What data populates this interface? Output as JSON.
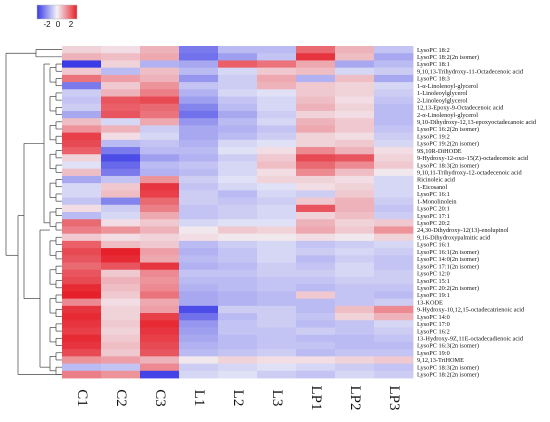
{
  "chart_data": {
    "type": "heatmap",
    "columns": [
      "C1",
      "C2",
      "C3",
      "L1",
      "L2",
      "L3",
      "LP1",
      "LP2",
      "LP3"
    ],
    "rows": [
      "LysoPC 18:2",
      "LysoPC 18:2(2n isomer)",
      "LysoPC 18:1",
      "9,10,13-Trihydroxy-11-Octadecenoic acid",
      "LysoPC 18:3",
      "1-α-Linolenoyl-glycerol",
      "1-Linoleoylglycerol",
      "2-Linoleoylglycerol",
      "12,13-Epoxy-9-Octadecenoic acid",
      "2-α-Linolenoyl-glycerol",
      "9,10-Dihydroxy-12,13-epoxyoctadecanoic acid",
      "LysoPC 16:2(2n isomer)",
      "LysoPC 19:2",
      "LysoPC 19:2(2n isomer)",
      "9S,10R-DiHODE",
      "9-Hydroxy-12-oxo-15(Z)-octadecenoic acid",
      "LysoPC 18:3(2n isomer)",
      "9,10,11-Trihydroxy-12-octadecenoic acid",
      "Ricinoleic acid",
      "1-Eicosanol",
      "LysoPC 16:1",
      "1-Monolinolein",
      "LysoPC 20:1",
      "LysoPC 17:1",
      "LysoPC 20:2",
      "24,30-Dihydroxy-12(13)-enolupinol",
      "9,16-Dihydroxypalmitic acid",
      "LysoPC 16:1",
      "LysoPC 16:1(2n isomer)",
      "LysoPC 14:0(2n isomer)",
      "LysoPC 17:1(2n isomer)",
      "LysoPC 12:0",
      "LysoPC 15:1",
      "LysoPC 20:2(2n isomer)",
      "LysoPC 19:1",
      "13-KODE",
      "9-Hydroxy-10,12,15-octadecatrienoic acid",
      "LysoPC 14:0",
      "LysoPC 17:0",
      "LysoPC 16:2",
      "13-Hydroxy-9Z,11E-octadecadienoic acid",
      "LysoPC 16:3(2n isomer)",
      "LysoPC 19:0",
      "9,12,13-TriHOME",
      "LysoPC 18:3(2n isomer)",
      "LysoPC 18:2(2n isomer)"
    ],
    "values": [
      [
        0.3,
        0.2,
        0.6,
        -1.3,
        -0.6,
        -0.6,
        1.3,
        0.6,
        -0.5
      ],
      [
        0.6,
        0.5,
        0.7,
        -1.4,
        -0.9,
        -0.5,
        1.8,
        0.5,
        -0.8
      ],
      [
        -2.0,
        0.3,
        -0.7,
        -0.8,
        1.4,
        1.2,
        0.7,
        -0.8,
        -0.6
      ],
      [
        0.4,
        -0.6,
        0.5,
        -0.6,
        -0.3,
        0.4,
        0.5,
        -0.3,
        -0.4
      ],
      [
        1.2,
        0.8,
        0.6,
        -1.0,
        -0.4,
        0.7,
        -0.7,
        0.5,
        -0.8
      ],
      [
        -1.3,
        0.4,
        0.9,
        -0.5,
        -0.4,
        0.6,
        0.4,
        0.3,
        -0.3
      ],
      [
        -0.4,
        0.6,
        1.1,
        -0.7,
        -0.3,
        -0.2,
        0.4,
        0.3,
        -0.4
      ],
      [
        -0.5,
        1.5,
        1.6,
        -0.9,
        -0.5,
        -0.3,
        0.5,
        0.2,
        -0.5
      ],
      [
        -0.4,
        1.4,
        1.3,
        -1.2,
        -0.6,
        -0.3,
        0.6,
        0.3,
        -0.6
      ],
      [
        -0.8,
        1.5,
        1.2,
        -1.4,
        -0.8,
        -0.4,
        0.3,
        0.2,
        -0.6
      ],
      [
        0.5,
        -0.3,
        0.7,
        -1.0,
        -0.6,
        -0.3,
        0.6,
        0.4,
        -0.6
      ],
      [
        0.9,
        0.6,
        -0.4,
        -0.8,
        -0.7,
        -0.5,
        0.7,
        0.4,
        -0.5
      ],
      [
        1.7,
        0.2,
        -0.3,
        -0.8,
        -0.6,
        -0.4,
        0.3,
        0.2,
        -0.4
      ],
      [
        1.6,
        -0.6,
        -0.5,
        -0.7,
        -0.3,
        -0.2,
        0.3,
        0.4,
        -0.3
      ],
      [
        1.4,
        -1.3,
        -0.6,
        -0.6,
        -0.2,
        0.2,
        1.0,
        0.6,
        0.2
      ],
      [
        0.3,
        -1.8,
        -0.9,
        -0.7,
        -0.4,
        0.4,
        1.6,
        1.5,
        0.3
      ],
      [
        -0.2,
        -1.5,
        -0.6,
        -0.5,
        -0.3,
        0.5,
        1.3,
        1.0,
        0.4
      ],
      [
        0.5,
        -1.3,
        -0.7,
        -0.6,
        -0.3,
        0.2,
        1.0,
        0.5,
        0.1
      ],
      [
        -0.8,
        -0.5,
        0.9,
        -0.4,
        -0.2,
        0.3,
        0.3,
        0.2,
        -0.3
      ],
      [
        -0.3,
        0.4,
        1.8,
        -0.5,
        -0.3,
        -0.2,
        0.2,
        0.3,
        -0.3
      ],
      [
        -0.3,
        0.5,
        1.7,
        -0.4,
        -0.6,
        -0.3,
        -0.4,
        0.4,
        -0.3
      ],
      [
        -0.5,
        -1.2,
        1.3,
        -0.4,
        -0.5,
        -0.4,
        0.4,
        0.6,
        -0.4
      ],
      [
        0.2,
        -0.4,
        1.1,
        -0.5,
        -0.4,
        -0.3,
        1.5,
        0.6,
        -0.5
      ],
      [
        -0.6,
        -0.3,
        0.7,
        -0.5,
        -0.4,
        -0.3,
        0.3,
        0.5,
        -0.4
      ],
      [
        1.3,
        0.2,
        0.4,
        -0.3,
        -0.2,
        -0.2,
        0.6,
        0.3,
        0.4
      ],
      [
        1.1,
        0.9,
        0.6,
        0.1,
        0.4,
        0.3,
        0.7,
        0.4,
        0.9
      ],
      [
        0.4,
        0.2,
        0.3,
        0.2,
        0.1,
        0.1,
        0.2,
        0.1,
        0.3
      ],
      [
        1.4,
        0.5,
        0.4,
        -0.6,
        -0.4,
        -0.3,
        -0.5,
        -0.4,
        -0.3
      ],
      [
        1.6,
        2.0,
        0.8,
        -0.7,
        -0.5,
        -0.3,
        -0.4,
        -0.3,
        -0.4
      ],
      [
        1.5,
        1.9,
        0.7,
        -0.6,
        -0.5,
        -0.3,
        -0.6,
        -0.4,
        -0.5
      ],
      [
        1.3,
        1.5,
        1.8,
        -0.7,
        -0.6,
        -0.4,
        -0.5,
        -0.3,
        -0.5
      ],
      [
        1.5,
        0.4,
        1.0,
        -0.5,
        -0.5,
        -0.4,
        -0.4,
        -0.3,
        -0.4
      ],
      [
        1.6,
        0.6,
        0.9,
        -0.6,
        -0.6,
        -0.5,
        -0.5,
        -0.4,
        -0.4
      ],
      [
        1.9,
        0.5,
        1.0,
        -0.7,
        -0.6,
        -0.5,
        -0.6,
        -0.5,
        -0.5
      ],
      [
        2.0,
        0.4,
        1.2,
        -0.8,
        -0.7,
        -0.6,
        0.4,
        -0.5,
        -0.6
      ],
      [
        1.0,
        0.2,
        0.7,
        -0.8,
        -0.7,
        -0.6,
        -0.6,
        -0.5,
        -0.4
      ],
      [
        1.8,
        0.3,
        0.8,
        -1.8,
        -0.4,
        -0.4,
        -0.6,
        0.5,
        1.0
      ],
      [
        1.9,
        0.3,
        1.7,
        -1.4,
        -0.6,
        -0.4,
        -0.5,
        0.3,
        0.6
      ],
      [
        1.8,
        0.4,
        1.9,
        -1.0,
        -0.5,
        -0.4,
        -0.6,
        -0.5,
        -0.3
      ],
      [
        1.7,
        0.3,
        1.8,
        -0.9,
        -0.5,
        -0.5,
        -0.4,
        -0.5,
        -0.4
      ],
      [
        1.9,
        0.4,
        1.7,
        -0.8,
        -0.6,
        -0.5,
        -0.6,
        -0.6,
        -0.5
      ],
      [
        1.8,
        0.5,
        1.6,
        -0.7,
        -0.6,
        -0.5,
        -0.5,
        -0.6,
        -0.6
      ],
      [
        1.6,
        0.4,
        1.5,
        -0.6,
        -0.5,
        -0.4,
        -0.6,
        -0.5,
        -0.5
      ],
      [
        0.9,
        0.8,
        0.6,
        0.1,
        0.3,
        0.2,
        0.2,
        0.3,
        0.4
      ],
      [
        -0.6,
        -0.5,
        1.0,
        -0.4,
        -0.3,
        -0.2,
        -0.3,
        -0.4,
        -0.5
      ],
      [
        1.1,
        0.9,
        -1.9,
        -0.3,
        -0.2,
        -0.4,
        -0.5,
        -0.3,
        -0.4
      ]
    ],
    "color_key": {
      "min": -2,
      "max": 2,
      "ticks": [
        "-2",
        "0",
        "2"
      ],
      "low_color": "#3a3ae6",
      "mid_color": "#f2f2f8",
      "high_color": "#e6202a"
    },
    "row_dendrogram": true,
    "legend_position": "top-left"
  }
}
